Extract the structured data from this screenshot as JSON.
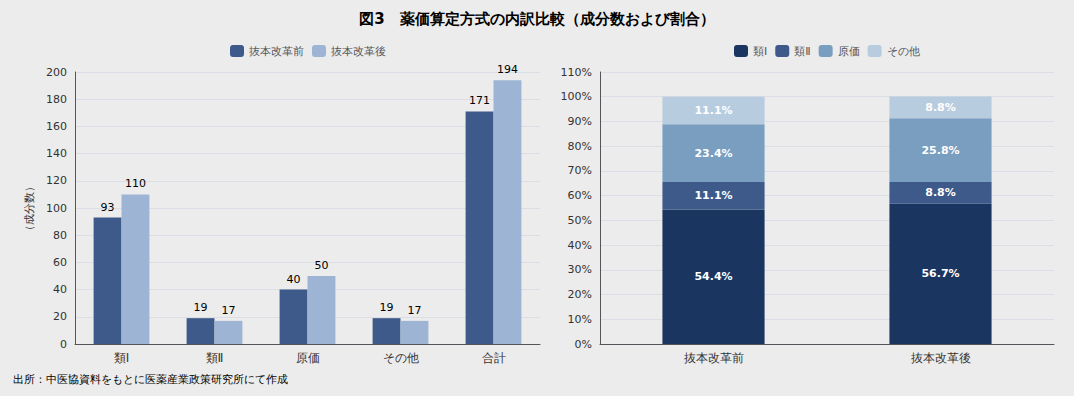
{
  "title": "図3　薬価算定方式の内訳比較（成分数および割合）",
  "annotations": [
    "出所：中医協資料をもとに医薬産業政策研究所にて作成"
  ],
  "chart_data": [
    {
      "type": "bar",
      "categories": [
        "類Ⅰ",
        "類Ⅱ",
        "原価",
        "その他",
        "合計"
      ],
      "series": [
        {
          "name": "抜本改革前",
          "color": "#3d5a8a",
          "values": [
            93,
            19,
            40,
            19,
            171
          ]
        },
        {
          "name": "抜本改革後",
          "color": "#9db4d4",
          "values": [
            110,
            17,
            50,
            17,
            194
          ]
        }
      ],
      "ylabel": "（成分数）",
      "ylim": [
        0,
        200
      ],
      "yticks": [
        0,
        20,
        40,
        60,
        80,
        100,
        120,
        140,
        160,
        180,
        200
      ],
      "grid": true,
      "legend": "top",
      "data_labels": true
    },
    {
      "type": "bar",
      "stacked": true,
      "categories": [
        "抜本改革前",
        "抜本改革後"
      ],
      "series": [
        {
          "name": "類Ⅰ",
          "color": "#1a3660",
          "values": [
            54.4,
            56.7
          ],
          "value_labels": [
            "54.4%",
            "56.7%"
          ]
        },
        {
          "name": "類Ⅱ",
          "color": "#3d5a8a",
          "values": [
            11.1,
            8.8
          ],
          "value_labels": [
            "11.1%",
            "8.8%"
          ]
        },
        {
          "name": "原価",
          "color": "#7a9ec0",
          "values": [
            23.4,
            25.8
          ],
          "value_labels": [
            "23.4%",
            "25.8%"
          ]
        },
        {
          "name": "その他",
          "color": "#b8ccdf",
          "values": [
            11.1,
            8.8
          ],
          "value_labels": [
            "11.1%",
            "8.8%"
          ]
        }
      ],
      "ylim": [
        0,
        110
      ],
      "yticks": [
        {
          "value": 0,
          "label": "0%"
        },
        {
          "value": 10,
          "label": "10%"
        },
        {
          "value": 20,
          "label": "20%"
        },
        {
          "value": 30,
          "label": "30%"
        },
        {
          "value": 40,
          "label": "40%"
        },
        {
          "value": 50,
          "label": "50%"
        },
        {
          "value": 60,
          "label": "60%"
        },
        {
          "value": 70,
          "label": "70%"
        },
        {
          "value": 80,
          "label": "80%"
        },
        {
          "value": 90,
          "label": "90%"
        },
        {
          "value": 100,
          "label": "100%"
        },
        {
          "value": 110,
          "label": "110%"
        }
      ],
      "grid": true,
      "legend": "top",
      "data_labels": true
    }
  ]
}
